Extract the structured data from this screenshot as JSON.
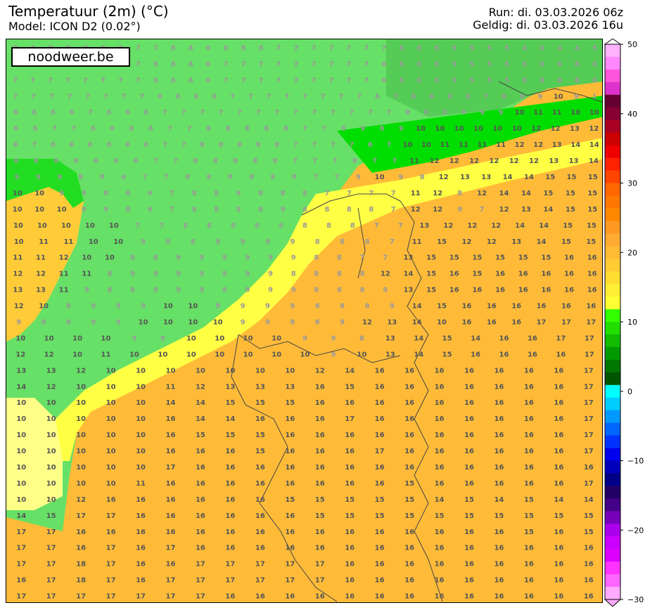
{
  "header": {
    "title": "Temperatuur (2m) (°C)",
    "model": "Model: ICON D2 (0.02°)",
    "run": "Run: di. 03.03.2026 06z",
    "valid": "Geldig: di. 03.03.2026 16u"
  },
  "brand": "noodweer.be",
  "colorbar": {
    "min": -30,
    "max": 50,
    "ticks": [
      50,
      40,
      30,
      20,
      10,
      0,
      -10,
      -20,
      -30
    ],
    "colors": [
      "#ffb3ff",
      "#ff88ff",
      "#ff55dd",
      "#dd33cc",
      "#660033",
      "#880033",
      "#aa0022",
      "#cc0000",
      "#ee0000",
      "#ff2200",
      "#ff4400",
      "#ff6600",
      "#ff7700",
      "#ff8800",
      "#ff9922",
      "#ffaa33",
      "#ffbb33",
      "#ffcc33",
      "#ffdd33",
      "#ffee33",
      "#ffff33",
      "#33ff00",
      "#22dd00",
      "#11bb00",
      "#009900",
      "#007700",
      "#005500",
      "#00ffff",
      "#00ccff",
      "#0099ff",
      "#0066ff",
      "#0033ff",
      "#0000ee",
      "#0000bb",
      "#000088",
      "#220066",
      "#440088",
      "#7700bb",
      "#aa00ee",
      "#cc00ff",
      "#dd00ff",
      "#ff33ff",
      "#ff66ff",
      "#ffaaff"
    ]
  },
  "grid_rows": [
    "7777777776666667777777666555544445",
    "7777777766667777777776666555566668",
    "7777777766667777777776666555588886",
    "7777777766667777777767666678891091",
    "6666766677777777777778889991011111010",
    "66776666778888877698910101010101012121312",
    "6766666677888887777671010111111111212131414",
    "8888666778888877787711121212121212131314",
    "9998867788888877910981213131414151515",
    "1010998667888888777711128121414151515",
    "1010109986788889888871212971213141515",
    "10101010107788999888771312121214141515",
    "1011111010988999988871115121213141515",
    "1111121010889999998877131515151515151616",
    "1212111189999999888812141516151616161616",
    "13131198899999998889131516161616161616",
    "121089991010999988891415161616161616",
    "98899101010109988912131410161616171717",
    "1010101099101010109981314151416161717",
    "12121011101010101010109101314151616161617",
    "1313121010101010101012141616161616161617",
    "1412101010111213131316151616161616161617",
    "1010101010141415151516161616161616161617",
    "1010101010161414161616171616161616161617",
    "1010101010161515151616161616161616161617",
    "1010101010161616151616161716161616161617",
    "1010101010171616161616161616161616161616",
    "1010101011161616161616161615161616161617",
    "1010121616161616161515151515141514151414",
    "1415171716161616161615151515151515151515",
    "1717161616161616161616161616161616151615",
    "1717161716171616161616161616161616161616",
    "1717181716161717171717161616161616161616",
    "1617181716171717171717161616161616161616",
    "1717171717171716161616161616161616161616"
  ]
}
